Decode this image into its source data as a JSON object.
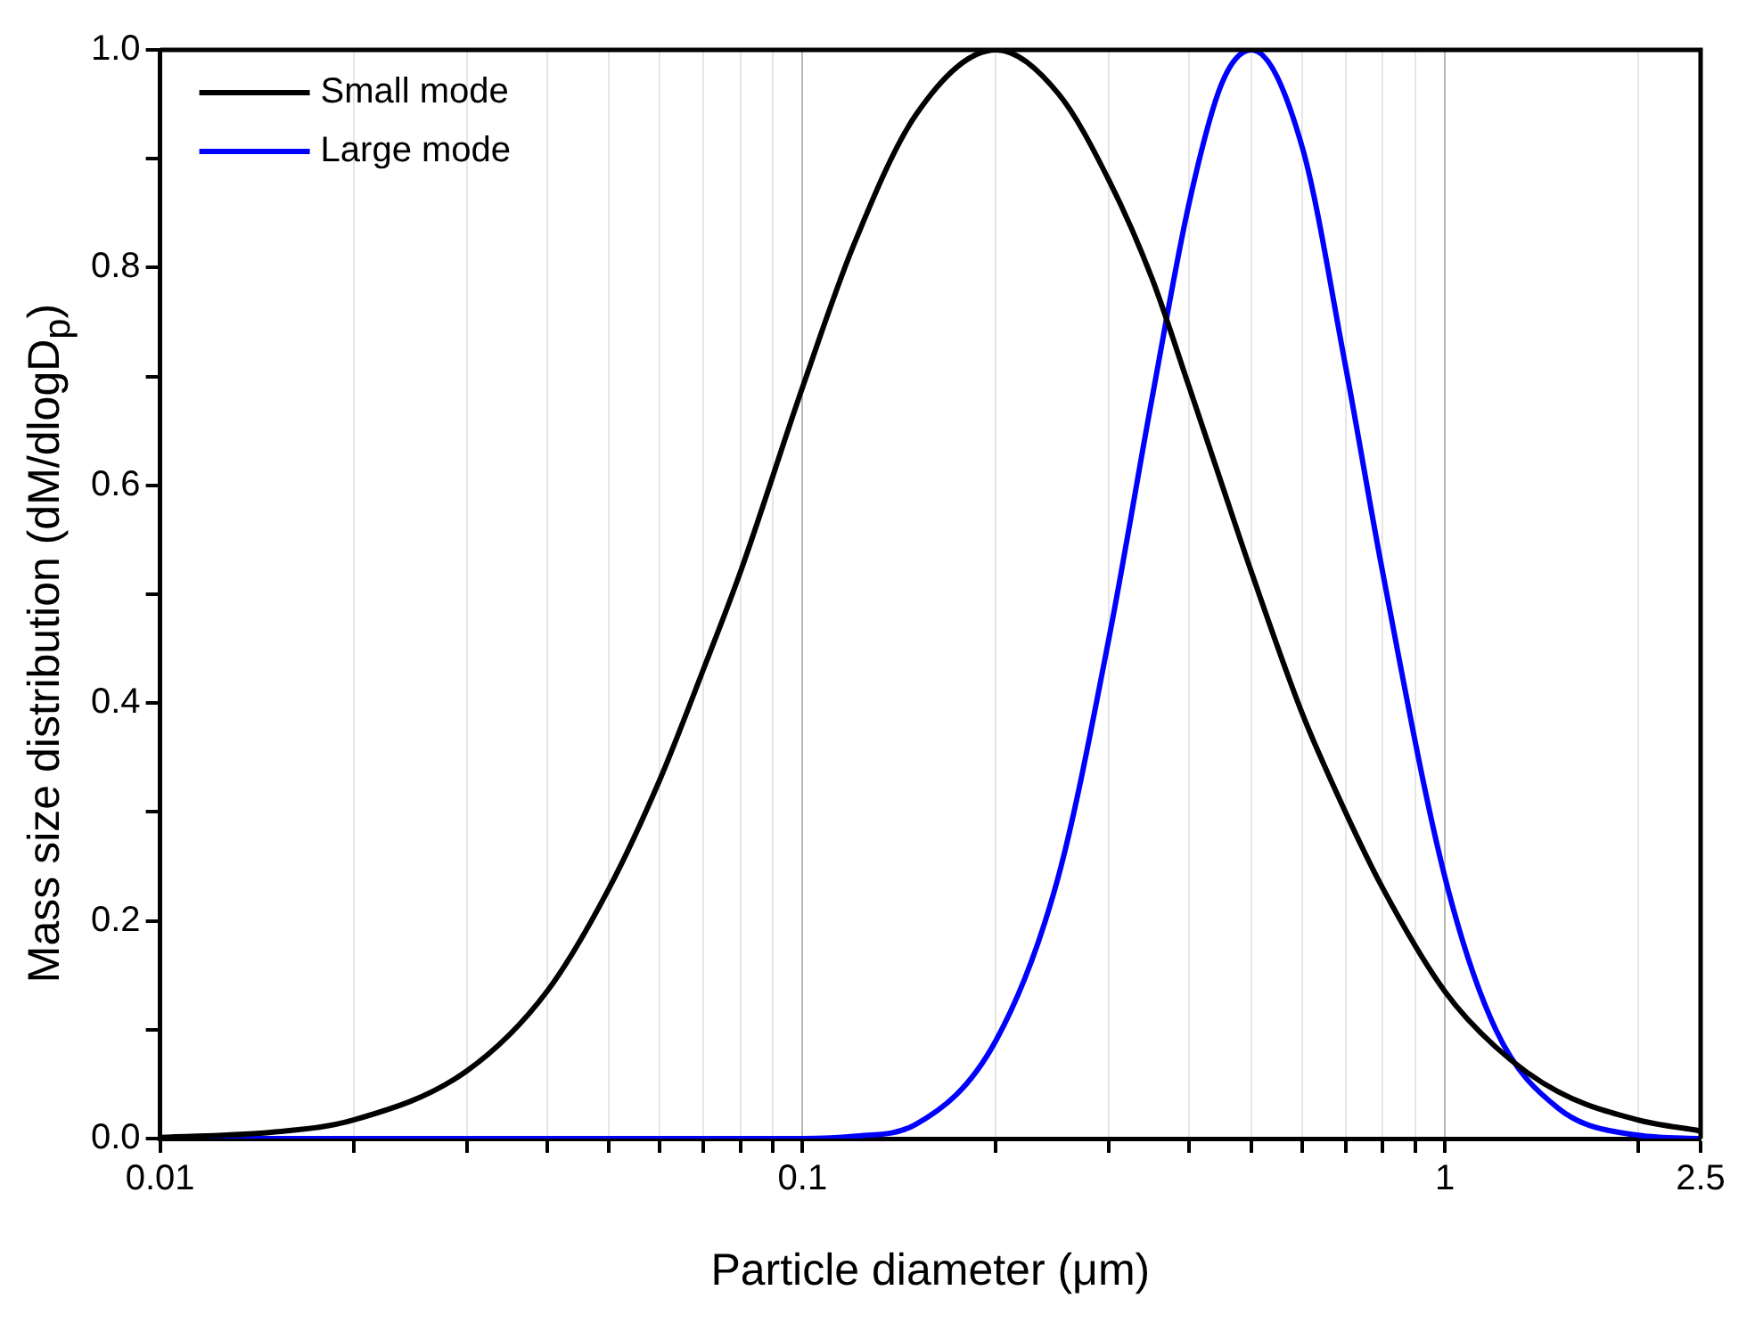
{
  "chart_data": {
    "type": "line",
    "xlabel": "Particle diameter (μm)",
    "ylabel": "Mass size distribution (dM/dlogD$_{p}$)",
    "x": [
      0.01,
      0.015,
      0.02,
      0.03,
      0.04,
      0.05,
      0.06,
      0.07,
      0.08,
      0.1,
      0.12,
      0.15,
      0.2,
      0.25,
      0.3,
      0.35,
      0.4,
      0.45,
      0.5,
      0.6,
      0.7,
      0.8,
      1,
      1.2,
      1.5,
      2,
      2.5
    ],
    "series": [
      {
        "name": "Small mode",
        "color": "#000000",
        "values": [
          0.001,
          0.006,
          0.017,
          0.062,
          0.135,
          0.23,
          0.33,
          0.43,
          0.52,
          0.69,
          0.82,
          0.94,
          1.0,
          0.96,
          0.88,
          0.79,
          0.69,
          0.6,
          0.52,
          0.39,
          0.3,
          0.23,
          0.135,
          0.084,
          0.043,
          0.017,
          0.007
        ]
      },
      {
        "name": "Large mode",
        "color": "#0000ff",
        "values": [
          0,
          0,
          0,
          0,
          0,
          0,
          0,
          0,
          0,
          0,
          0.002,
          0.013,
          0.09,
          0.24,
          0.46,
          0.68,
          0.86,
          0.97,
          1.0,
          0.91,
          0.71,
          0.52,
          0.24,
          0.1,
          0.028,
          0.003,
          0
        ]
      }
    ],
    "log": "x",
    "xlim": [
      0.01,
      2.5
    ],
    "xticks": [
      0.01,
      {
        "value": 0.02,
        "label": null
      },
      {
        "value": 0.03,
        "label": null
      },
      {
        "value": 0.04,
        "label": null
      },
      {
        "value": 0.05,
        "label": null
      },
      {
        "value": 0.06,
        "label": null
      },
      {
        "value": 0.07,
        "label": null
      },
      {
        "value": 0.08,
        "label": null
      },
      {
        "value": 0.09,
        "label": null
      },
      0.1,
      {
        "value": 0.2,
        "label": null
      },
      {
        "value": 0.3,
        "label": null
      },
      {
        "value": 0.4,
        "label": null
      },
      {
        "value": 0.5,
        "label": null
      },
      {
        "value": 0.6,
        "label": null
      },
      {
        "value": 0.7,
        "label": null
      },
      {
        "value": 0.8,
        "label": null
      },
      {
        "value": 0.9,
        "label": null
      },
      1,
      {
        "value": 2,
        "label": null
      },
      2.5
    ],
    "ylim": [
      0,
      1.0
    ],
    "yticks": [
      {
        "value": 0,
        "label": "0.0"
      },
      {
        "value": 0.1,
        "label": null
      },
      {
        "value": 0.2,
        "label": "0.2"
      },
      {
        "value": 0.3,
        "label": null
      },
      {
        "value": 0.4,
        "label": "0.4"
      },
      {
        "value": 0.5,
        "label": null
      },
      {
        "value": 0.6,
        "label": "0.6"
      },
      {
        "value": 0.7,
        "label": null
      },
      {
        "value": 0.8,
        "label": "0.8"
      },
      {
        "value": 0.9,
        "label": null
      },
      {
        "value": 1.0,
        "label": "1.0"
      }
    ],
    "grid": "x",
    "legend": "top left",
    "marker": "none",
    "line_style": "solid"
  }
}
